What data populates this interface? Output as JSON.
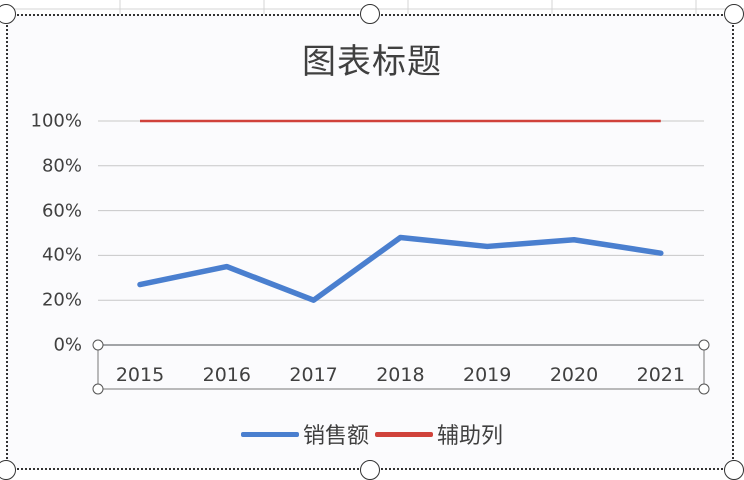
{
  "chart": {
    "title": "图表标题",
    "y_ticks": [
      "100%",
      "80%",
      "60%",
      "40%",
      "20%",
      "0%"
    ],
    "x_ticks": [
      "2015",
      "2016",
      "2017",
      "2018",
      "2019",
      "2020",
      "2021"
    ],
    "legend": [
      {
        "label": "销售额",
        "color": "#4a7fcf"
      },
      {
        "label": "辅助列",
        "color": "#d0423b"
      }
    ]
  },
  "chart_data": {
    "type": "line",
    "title": "图表标题",
    "xlabel": "",
    "ylabel": "",
    "categories": [
      "2015",
      "2016",
      "2017",
      "2018",
      "2019",
      "2020",
      "2021"
    ],
    "series": [
      {
        "name": "销售额",
        "color": "#4a7fcf",
        "values": [
          0.27,
          0.35,
          0.2,
          0.48,
          0.44,
          0.47,
          0.41
        ]
      },
      {
        "name": "辅助列",
        "color": "#d0423b",
        "values": [
          1.0,
          1.0,
          1.0,
          1.0,
          1.0,
          1.0,
          1.0
        ]
      }
    ],
    "ylim": [
      0,
      1.0
    ],
    "y_tick_format": "percent",
    "y_ticks": [
      0,
      0.2,
      0.4,
      0.6,
      0.8,
      1.0
    ],
    "grid": true,
    "legend_position": "bottom"
  }
}
